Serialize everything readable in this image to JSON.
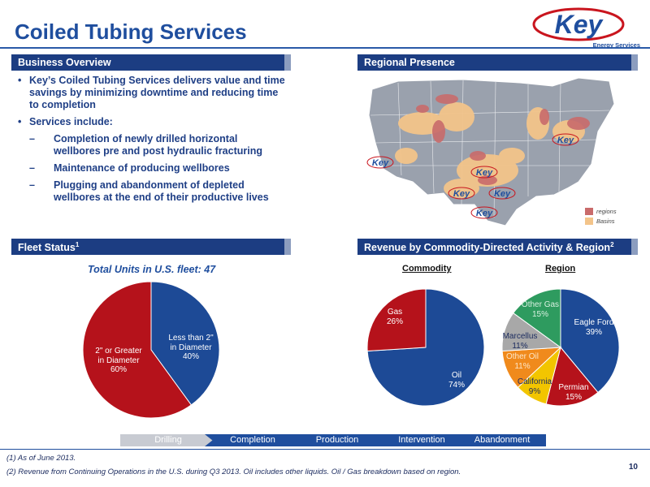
{
  "page": {
    "title": "Coiled Tubing Services",
    "page_number": "10"
  },
  "logo": {
    "wordmark": "Key",
    "subtitle": "Energy Services"
  },
  "business_overview": {
    "header": "Business Overview",
    "bullet_1": "Key’s Coiled Tubing Services delivers value and time savings by minimizing downtime and reducing time to completion",
    "bullet_2": "Services include:",
    "sub_1": "Completion of newly drilled horizontal wellbores pre and post hydraulic fracturing",
    "sub_2": "Maintenance of producing wellbores",
    "sub_3": "Plugging and abandonment of depleted wellbores at the end of their productive lives"
  },
  "regional_presence": {
    "header": "Regional Presence",
    "legend": [
      {
        "label": "regions",
        "color": "#c96b6b"
      },
      {
        "label": "Basins",
        "color": "#f3c48a"
      }
    ]
  },
  "fleet_status": {
    "header": "Fleet Status",
    "header_sup": "1",
    "caption": "Total Units in U.S. fleet: 47",
    "slices": [
      {
        "label_line1": "Less than 2\"",
        "label_line2": "in Diameter",
        "pct": "40%",
        "value": 40,
        "color": "#1d4a96"
      },
      {
        "label_line1": "2\" or Greater",
        "label_line2": "in Diameter",
        "pct": "60%",
        "value": 60,
        "color": "#b5121b"
      }
    ]
  },
  "revenue": {
    "header": "Revenue by Commodity-Directed Activity & Region",
    "header_sup": "2",
    "commodity_caption": "Commodity",
    "region_caption": "Region",
    "commodity": [
      {
        "label": "Oil",
        "pct": "74%",
        "value": 74,
        "color": "#1d4a96"
      },
      {
        "label": "Gas",
        "pct": "26%",
        "value": 26,
        "color": "#b5121b"
      }
    ],
    "region": [
      {
        "label": "Eagle Ford",
        "pct": "39%",
        "value": 39,
        "color": "#1d4a96"
      },
      {
        "label": "Permian",
        "pct": "15%",
        "value": 15,
        "color": "#b5121b"
      },
      {
        "label": "California",
        "pct": "9%",
        "value": 9,
        "color": "#f2c500"
      },
      {
        "label": "Other Oil",
        "pct": "11%",
        "value": 11,
        "color": "#f08a1c"
      },
      {
        "label": "Marcellus",
        "pct": "11%",
        "value": 11,
        "color": "#a8a8a8"
      },
      {
        "label": "Other Gas",
        "pct": "15%",
        "value": 15,
        "color": "#2e9b5f"
      }
    ]
  },
  "process": {
    "steps": [
      "Drilling",
      "Completion",
      "Production",
      "Intervention",
      "Abandonment"
    ]
  },
  "footnotes": {
    "note_1": "(1)   As of June 2013.",
    "note_2": "(2)   Revenue from Continuing Operations in the U.S. during Q3 2013. Oil includes other liquids. Oil / Gas breakdown based on region."
  },
  "colors": {
    "brand_blue": "#1f4e9e",
    "header_navy": "#1c3d82",
    "red": "#b5121b"
  }
}
